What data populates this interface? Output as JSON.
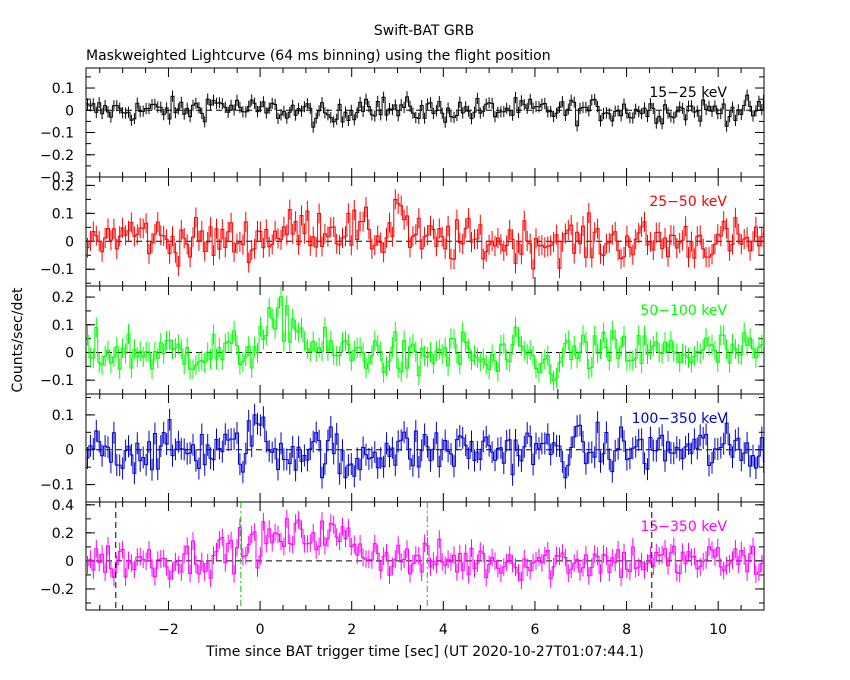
{
  "header": {
    "title": "Swift-BAT GRB",
    "subtitle": "Maskweighted Lightcurve (64 ms binning) using the flight position"
  },
  "chart_data": {
    "type": "line",
    "xlabel": "Time since BAT trigger time [sec] (UT 2020-10-27T01:07:44.1)",
    "ylabel": "Counts/sec/det",
    "xlim": [
      -3.8,
      11.0
    ],
    "x_ticks": [
      -2,
      0,
      2,
      4,
      6,
      8,
      10
    ],
    "x_tick_labels": [
      "−2",
      "0",
      "2",
      "4",
      "6",
      "8",
      "10"
    ],
    "bin_width_s": 0.064,
    "panels": [
      {
        "name": "15-25 keV",
        "label": "15−25 keV",
        "color": "#000000",
        "ylim": [
          -0.3,
          0.19
        ],
        "y_ticks": [
          0.1,
          0,
          -0.1,
          -0.2,
          -0.3
        ],
        "y_tick_labels": [
          "0.1",
          "0",
          "−0.1",
          "−0.2",
          "−0.3"
        ],
        "noise": 0.028,
        "features": [
          [
            1.6,
            0.5,
            -0.04
          ],
          [
            2.2,
            0.4,
            0.04
          ],
          [
            -1.0,
            0.4,
            0.03
          ]
        ]
      },
      {
        "name": "25-50 keV",
        "label": "25−50 keV",
        "color": "#ff0000",
        "ylim": [
          -0.16,
          0.23
        ],
        "y_ticks": [
          0.2,
          0.1,
          0,
          -0.1
        ],
        "y_tick_labels": [
          "0.2",
          "0.1",
          "0",
          "−0.1"
        ],
        "noise": 0.04,
        "features": [
          [
            1.3,
            1.2,
            0.05
          ],
          [
            3.0,
            0.15,
            0.15
          ],
          [
            -2.8,
            0.6,
            0.03
          ]
        ]
      },
      {
        "name": "50-100 keV",
        "label": "50−100 keV",
        "color": "#00ff00",
        "ylim": [
          -0.15,
          0.24
        ],
        "y_ticks": [
          0.2,
          0.1,
          0,
          -0.1
        ],
        "y_tick_labels": [
          "0.2",
          "0.1",
          "0",
          "−0.1"
        ],
        "noise": 0.04,
        "features": [
          [
            0.5,
            0.5,
            0.12
          ],
          [
            5.0,
            0.3,
            -0.05
          ],
          [
            6.2,
            0.4,
            -0.05
          ],
          [
            3.3,
            0.3,
            -0.04
          ]
        ]
      },
      {
        "name": "100-350 keV",
        "label": "100−350 keV",
        "color": "#0000cc",
        "ylim": [
          -0.15,
          0.16
        ],
        "y_ticks": [
          0.1,
          0,
          -0.1
        ],
        "y_tick_labels": [
          "0.1",
          "0",
          "−0.1"
        ],
        "noise": 0.035,
        "features": [
          [
            -0.1,
            0.15,
            0.09
          ],
          [
            1.9,
            0.2,
            -0.07
          ]
        ]
      },
      {
        "name": "15-350 keV",
        "label": "15−350 keV",
        "color": "#ff00ff",
        "ylim": [
          -0.35,
          0.42
        ],
        "y_ticks": [
          0.4,
          0.2,
          0,
          -0.2
        ],
        "y_tick_labels": [
          "0.4",
          "0.2",
          "0",
          "−0.2"
        ],
        "noise": 0.07,
        "features": [
          [
            0.6,
            1.5,
            0.15
          ],
          [
            1.6,
            0.8,
            0.08
          ]
        ]
      }
    ],
    "vlines": {
      "black_dashed": [
        -3.15,
        8.55
      ],
      "green_dashdot": [
        -0.42,
        3.65
      ]
    },
    "legend": "none",
    "grid": false
  }
}
